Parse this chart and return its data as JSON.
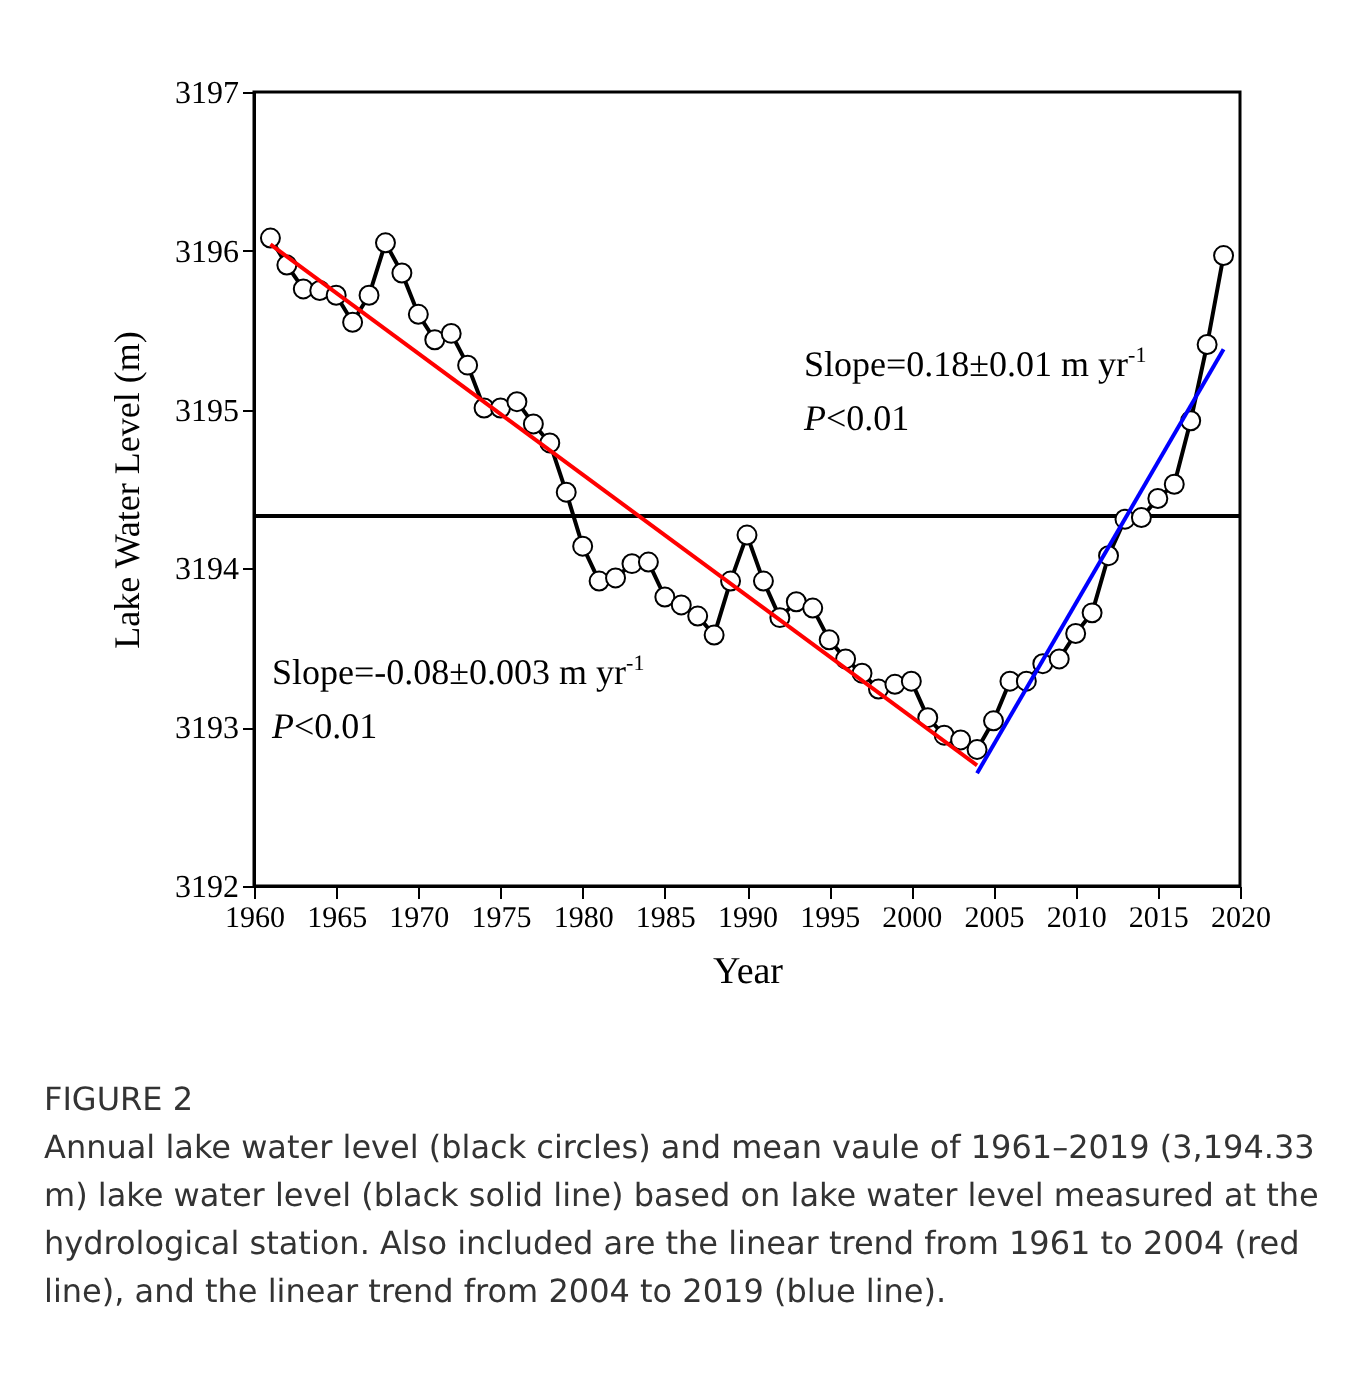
{
  "chart_data": {
    "type": "line",
    "xlabel": "Year",
    "ylabel": "Lake Water Level (m)",
    "x": [
      1961,
      1962,
      1963,
      1964,
      1965,
      1966,
      1967,
      1968,
      1969,
      1970,
      1971,
      1972,
      1973,
      1974,
      1975,
      1976,
      1977,
      1978,
      1979,
      1980,
      1981,
      1982,
      1983,
      1984,
      1985,
      1986,
      1987,
      1988,
      1989,
      1990,
      1991,
      1992,
      1993,
      1994,
      1995,
      1996,
      1997,
      1998,
      1999,
      2000,
      2001,
      2002,
      2003,
      2004,
      2005,
      2006,
      2007,
      2008,
      2009,
      2010,
      2011,
      2012,
      2013,
      2014,
      2015,
      2016,
      2017,
      2018,
      2019
    ],
    "series": [
      {
        "color": "#000000",
        "marker": "circle",
        "values": [
          3196.08,
          3195.91,
          3195.76,
          3195.75,
          3195.72,
          3195.55,
          3195.72,
          3196.05,
          3195.86,
          3195.6,
          3195.44,
          3195.48,
          3195.28,
          3195.01,
          3195.01,
          3195.05,
          3194.91,
          3194.79,
          3194.48,
          3194.14,
          3193.92,
          3193.94,
          3194.03,
          3194.04,
          3193.82,
          3193.77,
          3193.7,
          3193.58,
          3193.92,
          3194.21,
          3193.92,
          3193.69,
          3193.79,
          3193.75,
          3193.55,
          3193.43,
          3193.34,
          3193.24,
          3193.27,
          3193.29,
          3193.06,
          3192.95,
          3192.92,
          3192.86,
          3193.04,
          3193.29,
          3193.29,
          3193.4,
          3193.43,
          3193.59,
          3193.72,
          3194.08,
          3194.31,
          3194.32,
          3194.44,
          3194.53,
          3194.93,
          3195.41,
          3195.97
        ]
      },
      {
        "type": "line",
        "color": "#ff0000",
        "marker": "none",
        "x": [
          1961,
          2004
        ],
        "values": [
          3196.04,
          3192.76
        ]
      },
      {
        "type": "line",
        "color": "#0000ff",
        "marker": "none",
        "x": [
          2004,
          2019
        ],
        "values": [
          3192.71,
          3195.38
        ]
      }
    ],
    "xlim": [
      1960,
      2020
    ],
    "xticks": [
      1960,
      1965,
      1970,
      1975,
      1980,
      1985,
      1990,
      1995,
      2000,
      2005,
      2010,
      2015,
      2020
    ],
    "ylim": [
      3192,
      3197
    ],
    "yticks": [
      3192,
      3193,
      3194,
      3195,
      3196,
      3197
    ],
    "ref_lines": [
      {
        "axis": "y",
        "value": 3194.33,
        "color": "#000000"
      }
    ],
    "grid": false,
    "annotations": [
      "Slope=-0.08±0.003 m yr$^{-1}$",
      "P<0.01",
      "Slope=0.18±0.01 m yr$^{-1}$",
      "P<0.01",
      "FIGURE 2",
      "Annual lake water level (black circles) and mean vaule of 1961–2019 (3,194.33 m) lake water level (black solid line) based on lake water level measured at the hydrological station. Also included are the linear trend from 1961 to 2004 (red line), and the linear trend from 2004 to 2019 (blue line)."
    ]
  }
}
